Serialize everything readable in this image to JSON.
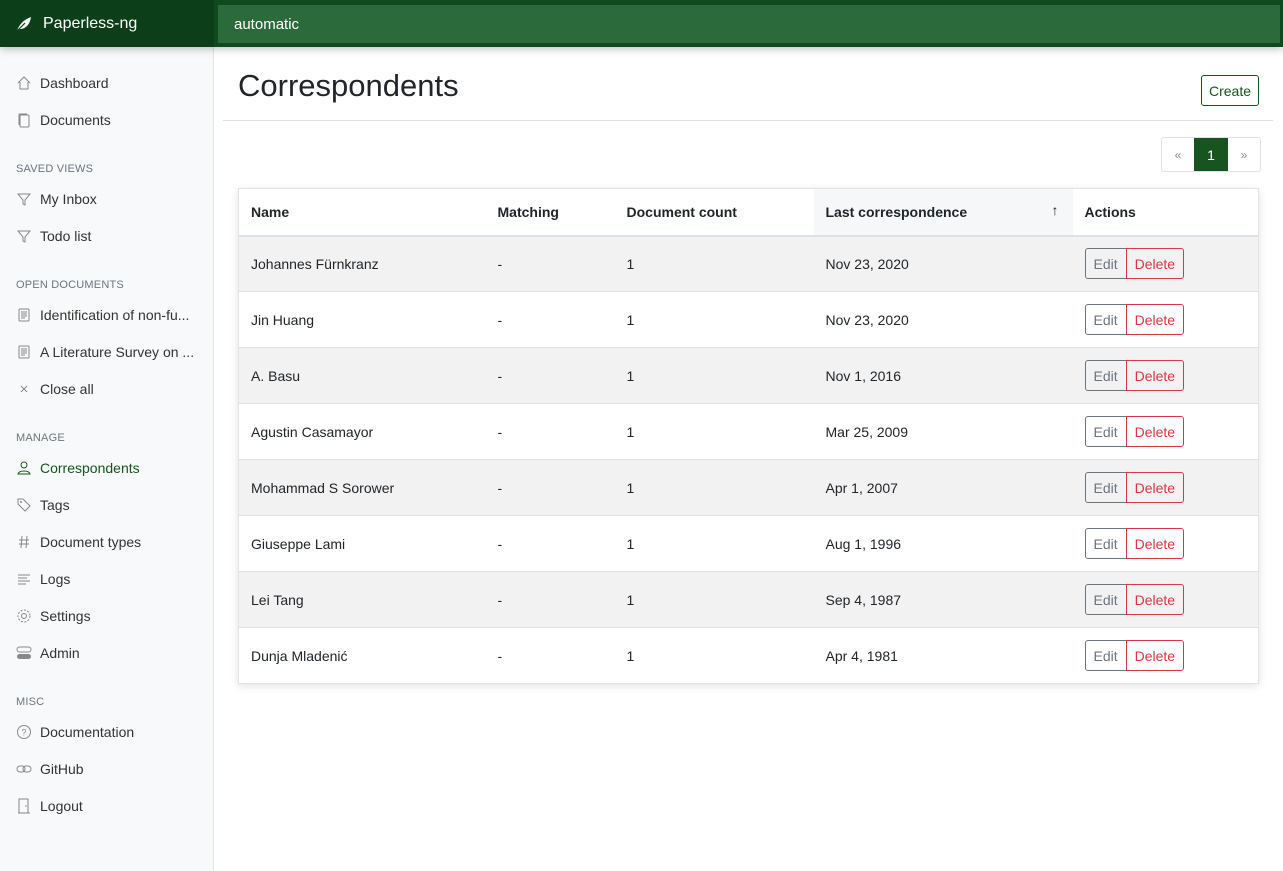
{
  "app": {
    "name": "Paperless-ng",
    "search_value": "automatic"
  },
  "sidebar": {
    "top": [
      {
        "label": "Dashboard",
        "icon": "house-icon"
      },
      {
        "label": "Documents",
        "icon": "files-icon"
      }
    ],
    "saved_views_title": "SAVED VIEWS",
    "saved_views": [
      {
        "label": "My Inbox",
        "icon": "funnel-icon"
      },
      {
        "label": "Todo list",
        "icon": "funnel-icon"
      }
    ],
    "open_docs_title": "OPEN DOCUMENTS",
    "open_docs": [
      {
        "label": "Identification of non-fu...",
        "icon": "file-text-icon"
      },
      {
        "label": "A Literature Survey on ...",
        "icon": "file-text-icon"
      },
      {
        "label": "Close all",
        "icon": "x-icon"
      }
    ],
    "manage_title": "MANAGE",
    "manage": [
      {
        "label": "Correspondents",
        "icon": "person-icon"
      },
      {
        "label": "Tags",
        "icon": "tags-icon"
      },
      {
        "label": "Document types",
        "icon": "hash-icon"
      },
      {
        "label": "Logs",
        "icon": "text-left-icon"
      },
      {
        "label": "Settings",
        "icon": "gear-icon"
      },
      {
        "label": "Admin",
        "icon": "toggles-icon"
      }
    ],
    "misc_title": "MISC",
    "misc": [
      {
        "label": "Documentation",
        "icon": "question-circle-icon"
      },
      {
        "label": "GitHub",
        "icon": "link-icon"
      },
      {
        "label": "Logout",
        "icon": "door-icon"
      }
    ]
  },
  "page": {
    "title": "Correspondents",
    "create_label": "Create"
  },
  "pagination": {
    "prev": "«",
    "current": "1",
    "next": "»"
  },
  "table": {
    "headers": [
      "Name",
      "Matching",
      "Document count",
      "Last correspondence",
      "Actions"
    ],
    "sort_arrow": "↑",
    "edit_label": "Edit",
    "delete_label": "Delete",
    "rows": [
      [
        "Johannes Fürnkranz",
        "-",
        "1",
        "Nov 23, 2020"
      ],
      [
        "Jin Huang",
        "-",
        "1",
        "Nov 23, 2020"
      ],
      [
        "A. Basu",
        "-",
        "1",
        "Nov 1, 2016"
      ],
      [
        "Agustin Casamayor",
        "-",
        "1",
        "Mar 25, 2009"
      ],
      [
        "Mohammad S Sorower",
        "-",
        "1",
        "Apr 1, 2007"
      ],
      [
        "Giuseppe Lami",
        "-",
        "1",
        "Aug 1, 1996"
      ],
      [
        "Lei Tang",
        "-",
        "1",
        "Sep 4, 1987"
      ],
      [
        "Dunja Mladenić",
        "-",
        "1",
        "Apr 4, 1981"
      ]
    ]
  },
  "colors": {
    "brand": "#17541f",
    "danger": "#dc3545"
  }
}
